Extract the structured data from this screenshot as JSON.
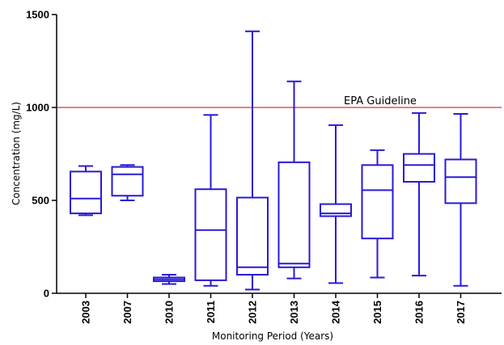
{
  "chart_data": {
    "type": "boxplot",
    "xlabel": "Monitoring Period (Years)",
    "ylabel": "Concentration (mg/L)",
    "ylim": [
      0,
      1500
    ],
    "yticks": [
      0,
      500,
      1000,
      1500
    ],
    "categories": [
      "2003",
      "2007",
      "2010",
      "2011",
      "2012",
      "2013",
      "2014",
      "2015",
      "2016",
      "2017"
    ],
    "boxes": [
      {
        "min": 420,
        "q1": 430,
        "median": 510,
        "q3": 655,
        "max": 685
      },
      {
        "min": 500,
        "q1": 525,
        "median": 640,
        "q3": 680,
        "max": 690
      },
      {
        "min": 50,
        "q1": 65,
        "median": 75,
        "q3": 85,
        "max": 100
      },
      {
        "min": 40,
        "q1": 70,
        "median": 340,
        "q3": 560,
        "max": 960
      },
      {
        "min": 20,
        "q1": 100,
        "median": 140,
        "q3": 515,
        "max": 1410
      },
      {
        "min": 80,
        "q1": 140,
        "median": 160,
        "q3": 705,
        "max": 1140
      },
      {
        "min": 55,
        "q1": 415,
        "median": 430,
        "q3": 480,
        "max": 905
      },
      {
        "min": 85,
        "q1": 295,
        "median": 555,
        "q3": 690,
        "max": 770
      },
      {
        "min": 95,
        "q1": 600,
        "median": 690,
        "q3": 750,
        "max": 970
      },
      {
        "min": 40,
        "q1": 485,
        "median": 625,
        "q3": 720,
        "max": 965
      }
    ],
    "reference_line": {
      "value": 1000,
      "label": "EPA Guideline",
      "color": "#e03030"
    },
    "box_color": "#2a1ad6",
    "grid": false,
    "legend": "none"
  }
}
